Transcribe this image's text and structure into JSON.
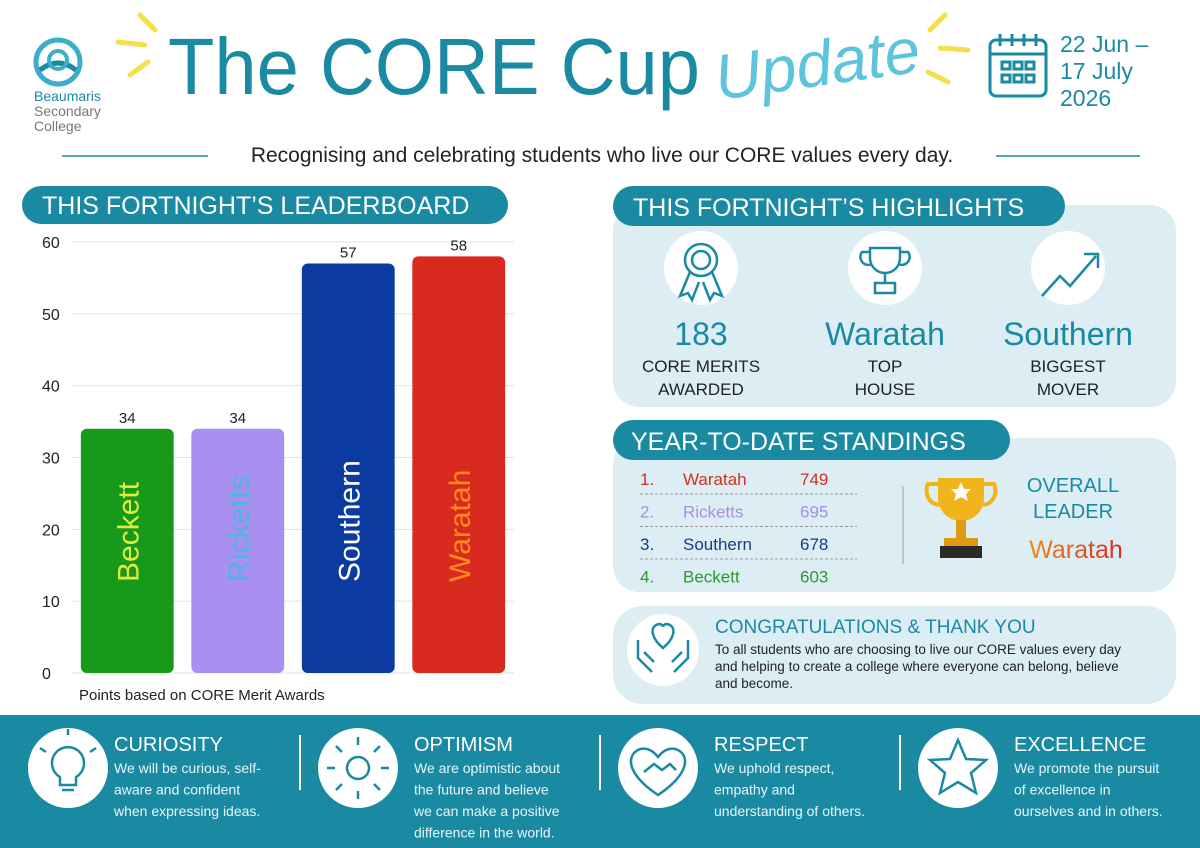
{
  "header": {
    "school": [
      "Beaumaris",
      "Secondary",
      "College"
    ],
    "title": "The CORE Cup",
    "title_script": "Update",
    "date": [
      "22 Jun –",
      "17 July",
      "2026"
    ],
    "tagline": "Recognising and celebrating students who live our CORE values every day."
  },
  "chart_data": {
    "type": "bar",
    "title": "THIS FORTNIGHT’S LEADERBOARD",
    "categories": [
      "Beckett",
      "Ricketts",
      "Southern",
      "Waratah"
    ],
    "values": [
      34,
      34,
      57,
      58
    ],
    "colors": [
      "#179a1c",
      "#a98ff0",
      "#0b3aa0",
      "#d92a1f"
    ],
    "label_colors": [
      "#e4e83a",
      "#4fb6e4",
      "#ffffff",
      "#ff8a1e"
    ],
    "ylim": [
      0,
      60
    ],
    "yticks": [
      0,
      10,
      20,
      30,
      40,
      50,
      60
    ],
    "grid": true,
    "note": "Points based on CORE Merit Awards"
  },
  "highlights": {
    "title": "THIS FORTNIGHT’S  HIGHLIGHTS",
    "items": [
      {
        "value": 183,
        "label": [
          "CORE MERITS",
          "AWARDED"
        ]
      },
      {
        "value": "Waratah",
        "label": [
          "TOP",
          "HOUSE"
        ]
      },
      {
        "value": "Southern",
        "label": [
          "BIGGEST",
          "MOVER"
        ]
      }
    ]
  },
  "standings": {
    "title": "YEAR-TO-DATE STANDINGS",
    "rows": [
      [
        "1.",
        "Waratah",
        749
      ],
      [
        "2.",
        "Ricketts",
        695
      ],
      [
        "3.",
        "Southern",
        678
      ],
      [
        "4.",
        "Beckett",
        603
      ]
    ],
    "leader_label": [
      "OVERALL",
      "LEADER"
    ],
    "leader": "Waratah"
  },
  "congrats": {
    "title": "CONGRATULATIONS & THANK YOU",
    "body": [
      "To all students who are choosing to live our CORE values every day",
      "and helping to create a college where everyone can belong, believe",
      "and become."
    ]
  },
  "values": [
    {
      "title": "CURIOSITY",
      "text": [
        "We will be curious, self-",
        "aware and confident",
        "when expressing ideas."
      ]
    },
    {
      "title": "OPTIMISM",
      "text": [
        "We are optimistic about",
        "the future and believe",
        "we can make a positive",
        "difference in the world."
      ]
    },
    {
      "title": "RESPECT",
      "text": [
        "We uphold respect,",
        "empathy and",
        "understanding of others."
      ]
    },
    {
      "title": "EXCELLENCE",
      "text": [
        "We promote the pursuit",
        "of excellence in",
        "ourselves and in others."
      ]
    }
  ]
}
